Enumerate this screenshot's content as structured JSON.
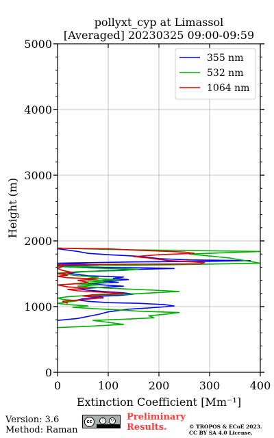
{
  "chart_data": {
    "type": "line",
    "title_line1": "pollyxt_cyp at Limassol",
    "title_line2": "[Averaged] 20230325 09:00-09:59",
    "xlabel": "Extinction Coefficient [Mm⁻¹]",
    "ylabel": "Height (m)",
    "xlim": [
      0,
      400
    ],
    "ylim": [
      0,
      5000
    ],
    "x_ticks": [
      "0",
      "100",
      "200",
      "300",
      "400"
    ],
    "y_ticks": [
      "0",
      "1000",
      "2000",
      "3000",
      "4000",
      "5000"
    ],
    "grid": true,
    "legend_position": "top-right",
    "series": [
      {
        "name": "355 nm",
        "color": "#0000ff",
        "points": [
          [
            0,
            790
          ],
          [
            40,
            820
          ],
          [
            60,
            850
          ],
          [
            80,
            880
          ],
          [
            100,
            920
          ],
          [
            140,
            960
          ],
          [
            200,
            990
          ],
          [
            230,
            1010
          ],
          [
            210,
            1030
          ],
          [
            160,
            1050
          ],
          [
            100,
            1060
          ],
          [
            60,
            1080
          ],
          [
            40,
            1100
          ],
          [
            50,
            1120
          ],
          [
            90,
            1130
          ],
          [
            60,
            1150
          ],
          [
            120,
            1170
          ],
          [
            150,
            1190
          ],
          [
            130,
            1210
          ],
          [
            90,
            1230
          ],
          [
            60,
            1250
          ],
          [
            40,
            1270
          ],
          [
            80,
            1290
          ],
          [
            130,
            1310
          ],
          [
            90,
            1330
          ],
          [
            60,
            1350
          ],
          [
            120,
            1370
          ],
          [
            90,
            1390
          ],
          [
            140,
            1410
          ],
          [
            110,
            1430
          ],
          [
            130,
            1450
          ],
          [
            60,
            1470
          ],
          [
            40,
            1490
          ],
          [
            20,
            1510
          ],
          [
            50,
            1530
          ],
          [
            100,
            1550
          ],
          [
            170,
            1570
          ],
          [
            230,
            1580
          ],
          [
            180,
            1590
          ],
          [
            40,
            1600
          ],
          [
            0,
            1620
          ],
          [
            80,
            1640
          ],
          [
            0,
            1660
          ],
          [
            150,
            1680
          ],
          [
            300,
            1690
          ],
          [
            380,
            1700
          ],
          [
            260,
            1710
          ],
          [
            200,
            1730
          ],
          [
            180,
            1750
          ],
          [
            150,
            1770
          ],
          [
            100,
            1790
          ],
          [
            60,
            1810
          ],
          [
            40,
            1840
          ],
          [
            0,
            1880
          ]
        ]
      },
      {
        "name": "532 nm",
        "color": "#00b000",
        "points": [
          [
            0,
            680
          ],
          [
            60,
            700
          ],
          [
            130,
            730
          ],
          [
            100,
            760
          ],
          [
            70,
            790
          ],
          [
            140,
            810
          ],
          [
            190,
            830
          ],
          [
            180,
            860
          ],
          [
            220,
            890
          ],
          [
            240,
            910
          ],
          [
            160,
            930
          ],
          [
            120,
            950
          ],
          [
            70,
            970
          ],
          [
            30,
            990
          ],
          [
            60,
            1010
          ],
          [
            20,
            1030
          ],
          [
            0,
            1050
          ],
          [
            20,
            1070
          ],
          [
            40,
            1090
          ],
          [
            10,
            1110
          ],
          [
            0,
            1130
          ],
          [
            20,
            1150
          ],
          [
            60,
            1170
          ],
          [
            140,
            1190
          ],
          [
            190,
            1210
          ],
          [
            240,
            1230
          ],
          [
            190,
            1250
          ],
          [
            130,
            1270
          ],
          [
            80,
            1290
          ],
          [
            40,
            1310
          ],
          [
            80,
            1330
          ],
          [
            30,
            1350
          ],
          [
            100,
            1370
          ],
          [
            60,
            1390
          ],
          [
            120,
            1410
          ],
          [
            60,
            1430
          ],
          [
            80,
            1450
          ],
          [
            40,
            1470
          ],
          [
            20,
            1490
          ],
          [
            0,
            1510
          ],
          [
            40,
            1530
          ],
          [
            130,
            1550
          ],
          [
            160,
            1570
          ],
          [
            60,
            1590
          ],
          [
            0,
            1610
          ],
          [
            180,
            1630
          ],
          [
            400,
            1660
          ],
          [
            370,
            1700
          ],
          [
            340,
            1740
          ],
          [
            300,
            1770
          ],
          [
            260,
            1800
          ],
          [
            400,
            1840
          ],
          [
            100,
            1870
          ],
          [
            0,
            1890
          ]
        ]
      },
      {
        "name": "1064 nm",
        "color": "#e00000",
        "points": [
          [
            20,
            1050
          ],
          [
            10,
            1080
          ],
          [
            40,
            1100
          ],
          [
            70,
            1120
          ],
          [
            90,
            1140
          ],
          [
            50,
            1160
          ],
          [
            70,
            1180
          ],
          [
            130,
            1200
          ],
          [
            90,
            1220
          ],
          [
            40,
            1240
          ],
          [
            20,
            1260
          ],
          [
            60,
            1280
          ],
          [
            20,
            1300
          ],
          [
            0,
            1330
          ],
          [
            40,
            1350
          ],
          [
            60,
            1370
          ],
          [
            40,
            1400
          ],
          [
            80,
            1420
          ],
          [
            20,
            1440
          ],
          [
            0,
            1460
          ],
          [
            20,
            1480
          ],
          [
            0,
            1500
          ],
          [
            30,
            1520
          ],
          [
            10,
            1550
          ],
          [
            0,
            1580
          ],
          [
            10,
            1610
          ],
          [
            0,
            1640
          ],
          [
            280,
            1650
          ],
          [
            290,
            1670
          ],
          [
            250,
            1690
          ],
          [
            220,
            1700
          ],
          [
            200,
            1720
          ],
          [
            180,
            1740
          ],
          [
            150,
            1760
          ],
          [
            200,
            1790
          ],
          [
            270,
            1810
          ],
          [
            250,
            1830
          ],
          [
            150,
            1860
          ],
          [
            100,
            1880
          ],
          [
            0,
            1890
          ]
        ]
      }
    ]
  },
  "footer": {
    "version": "Version: 3.6",
    "method": "Method: Raman",
    "preliminary_line1": "Preliminary",
    "preliminary_line2": "Results.",
    "copyright_line1": "© TROPOS & ECoE 2023.",
    "copyright_line2": "CC BY SA 4.0 License."
  }
}
